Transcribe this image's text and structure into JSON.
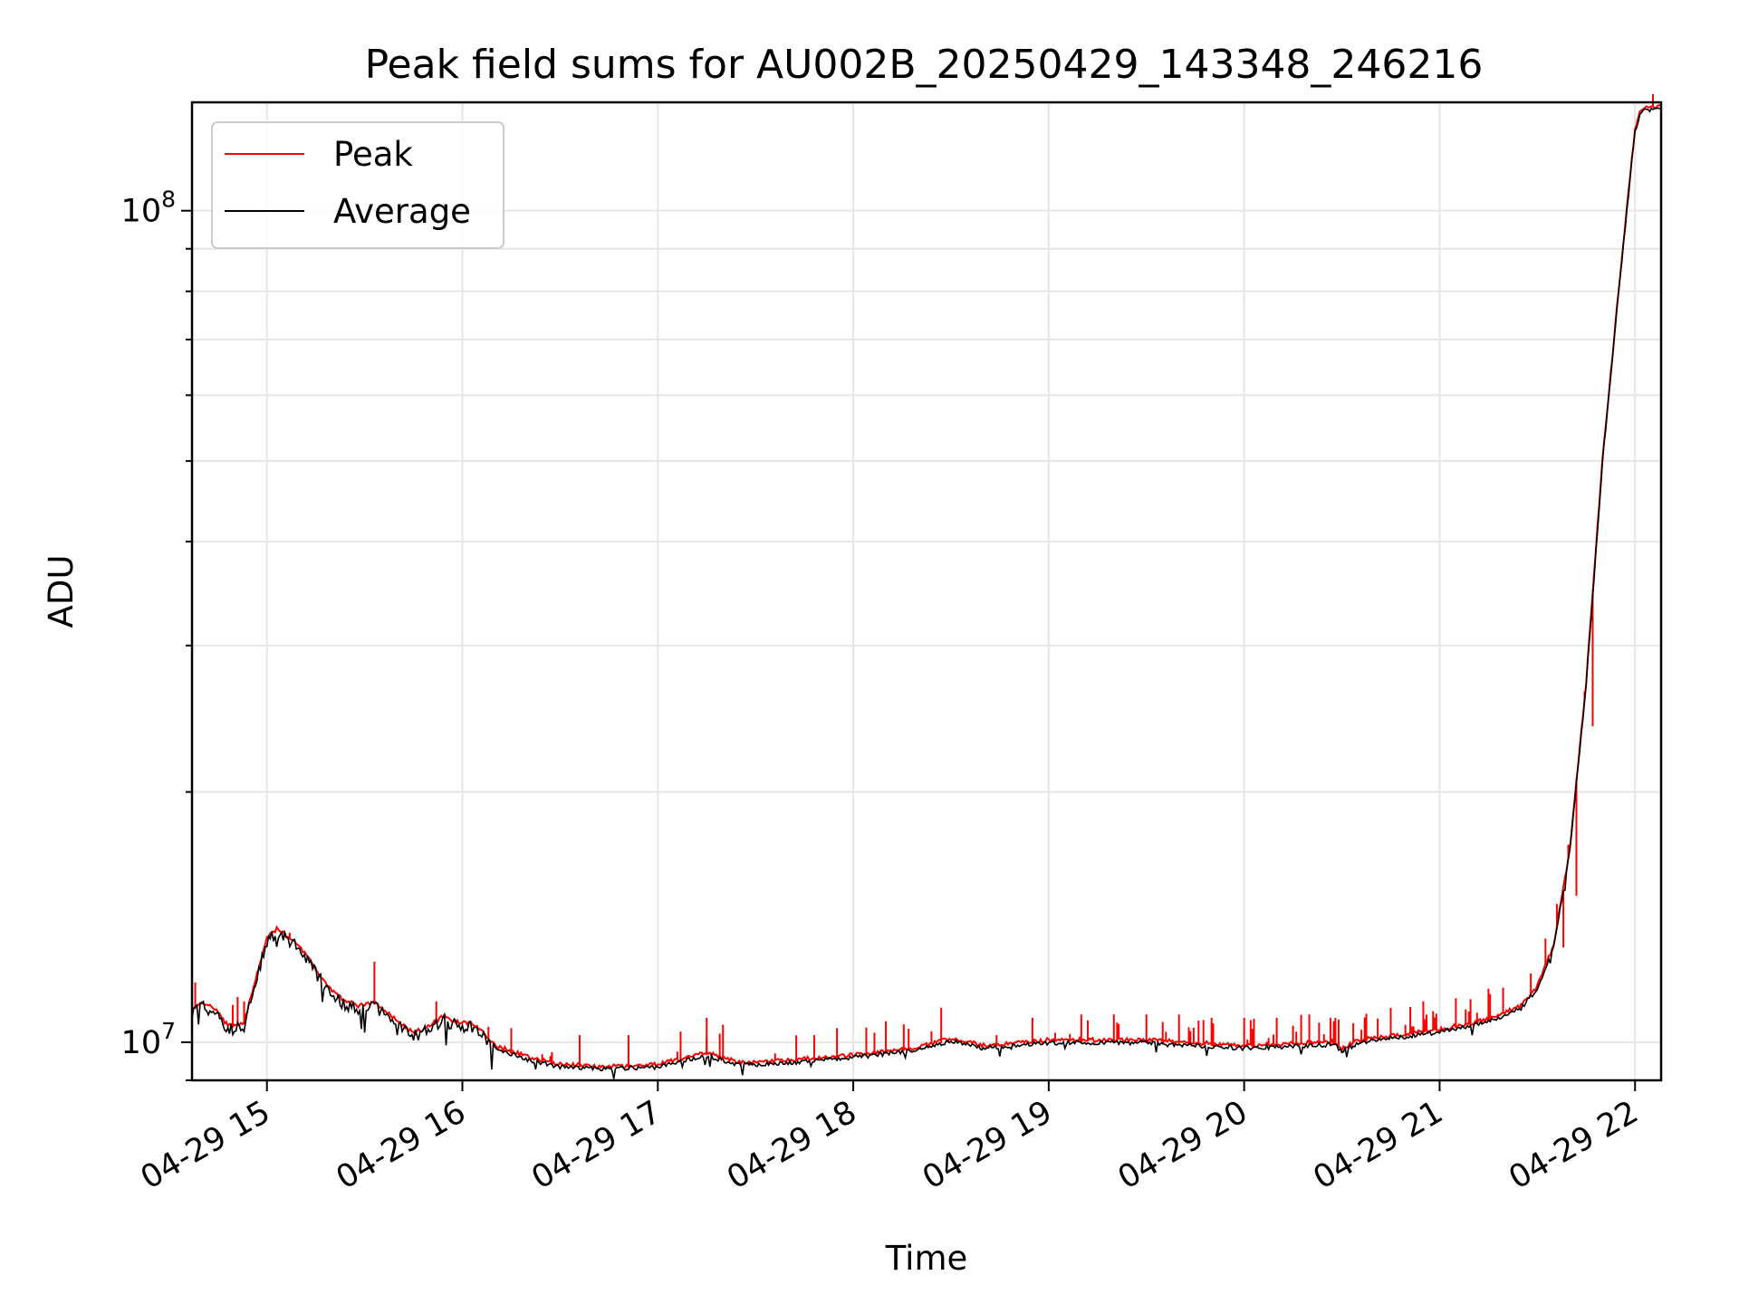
{
  "chart_data": {
    "type": "line",
    "title": "Peak field sums for AU002B_20250429_143348_246216",
    "xlabel": "Time",
    "ylabel": "ADU",
    "yscale": "log",
    "xlim": [
      "04-29 14:37",
      "04-29 22:08"
    ],
    "ylim": [
      9000000,
      135000000
    ],
    "x_ticks": [
      "04-29 15",
      "04-29 16",
      "04-29 17",
      "04-29 18",
      "04-29 19",
      "04-29 20",
      "04-29 21",
      "04-29 22"
    ],
    "y_ticks": [
      {
        "value": 10000000,
        "base": "10",
        "exp": "7"
      },
      {
        "value": 100000000,
        "base": "10",
        "exp": "8"
      }
    ],
    "grid": true,
    "legend_position": "upper-left",
    "series_meta": [
      {
        "name": "Peak",
        "color": "#ff0000"
      },
      {
        "name": "Average",
        "color": "#000000"
      }
    ],
    "average_points": [
      [
        "04-29 14:37",
        10900000
      ],
      [
        "04-29 14:40",
        11100000
      ],
      [
        "04-29 14:44",
        10900000
      ],
      [
        "04-29 14:48",
        10400000
      ],
      [
        "04-29 14:53",
        10500000
      ],
      [
        "04-29 14:57",
        12000000
      ],
      [
        "04-29 15:00",
        13300000
      ],
      [
        "04-29 15:03",
        13600000
      ],
      [
        "04-29 15:08",
        13200000
      ],
      [
        "04-29 15:13",
        12500000
      ],
      [
        "04-29 15:18",
        11700000
      ],
      [
        "04-29 15:23",
        11200000
      ],
      [
        "04-29 15:28",
        11000000
      ],
      [
        "04-29 15:33",
        11100000
      ],
      [
        "04-29 15:38",
        10700000
      ],
      [
        "04-29 15:45",
        10200000
      ],
      [
        "04-29 15:50",
        10400000
      ],
      [
        "04-29 15:54",
        10700000
      ],
      [
        "04-29 15:58",
        10500000
      ],
      [
        "04-29 16:03",
        10500000
      ],
      [
        "04-29 16:10",
        9850000
      ],
      [
        "04-29 16:20",
        9550000
      ],
      [
        "04-29 16:30",
        9350000
      ],
      [
        "04-29 16:45",
        9300000
      ],
      [
        "04-29 17:00",
        9350000
      ],
      [
        "04-29 17:10",
        9550000
      ],
      [
        "04-29 17:15",
        9650000
      ],
      [
        "04-29 17:25",
        9400000
      ],
      [
        "04-29 17:40",
        9450000
      ],
      [
        "04-29 18:00",
        9600000
      ],
      [
        "04-29 18:20",
        9800000
      ],
      [
        "04-29 18:30",
        10050000
      ],
      [
        "04-29 18:40",
        9850000
      ],
      [
        "04-29 19:00",
        10000000
      ],
      [
        "04-29 19:30",
        10000000
      ],
      [
        "04-29 20:00",
        9850000
      ],
      [
        "04-29 20:28",
        9950000
      ],
      [
        "04-29 20:30",
        9750000
      ],
      [
        "04-29 20:35",
        10000000
      ],
      [
        "04-29 21:00",
        10300000
      ],
      [
        "04-29 21:15",
        10600000
      ],
      [
        "04-29 21:25",
        11000000
      ],
      [
        "04-29 21:30",
        11600000
      ],
      [
        "04-29 21:35",
        13000000
      ],
      [
        "04-29 21:40",
        17000000
      ],
      [
        "04-29 21:45",
        27000000
      ],
      [
        "04-29 21:50",
        50000000
      ],
      [
        "04-29 21:55",
        80000000
      ],
      [
        "04-29 22:00",
        125000000
      ],
      [
        "04-29 22:02",
        132000000
      ],
      [
        "04-29 22:08",
        133000000
      ]
    ],
    "peak_spikes": [
      [
        "04-29 14:38",
        11800000
      ],
      [
        "04-29 14:53",
        11200000
      ],
      [
        "04-29 15:33",
        12500000
      ],
      [
        "04-29 15:52",
        11200000
      ],
      [
        "04-29 16:15",
        10400000
      ],
      [
        "04-29 16:36",
        10200000
      ],
      [
        "04-29 16:51",
        10200000
      ],
      [
        "04-29 17:07",
        10300000
      ],
      [
        "04-29 17:15",
        10700000
      ],
      [
        "04-29 17:20",
        10500000
      ],
      [
        "04-29 17:48",
        10200000
      ],
      [
        "04-29 17:55",
        10400000
      ],
      [
        "04-29 18:10",
        10600000
      ],
      [
        "04-29 18:27",
        11000000
      ],
      [
        "04-29 18:44",
        10200000
      ],
      [
        "04-29 18:55",
        10700000
      ],
      [
        "04-29 19:10",
        10800000
      ],
      [
        "04-29 19:20",
        10800000
      ],
      [
        "04-29 19:30",
        10800000
      ],
      [
        "04-29 19:40",
        10800000
      ],
      [
        "04-29 19:50",
        10700000
      ],
      [
        "04-29 20:00",
        10700000
      ],
      [
        "04-29 20:10",
        10700000
      ],
      [
        "04-29 20:20",
        10800000
      ],
      [
        "04-29 20:28",
        10700000
      ],
      [
        "04-29 20:45",
        11000000
      ],
      [
        "04-29 20:55",
        11200000
      ],
      [
        "04-29 21:05",
        11300000
      ],
      [
        "04-29 21:15",
        11600000
      ],
      [
        "04-29 21:28",
        12100000
      ],
      [
        "04-29 21:38",
        13000000
      ],
      [
        "04-29 21:42",
        15000000
      ],
      [
        "04-29 21:47",
        24000000
      ]
    ]
  }
}
